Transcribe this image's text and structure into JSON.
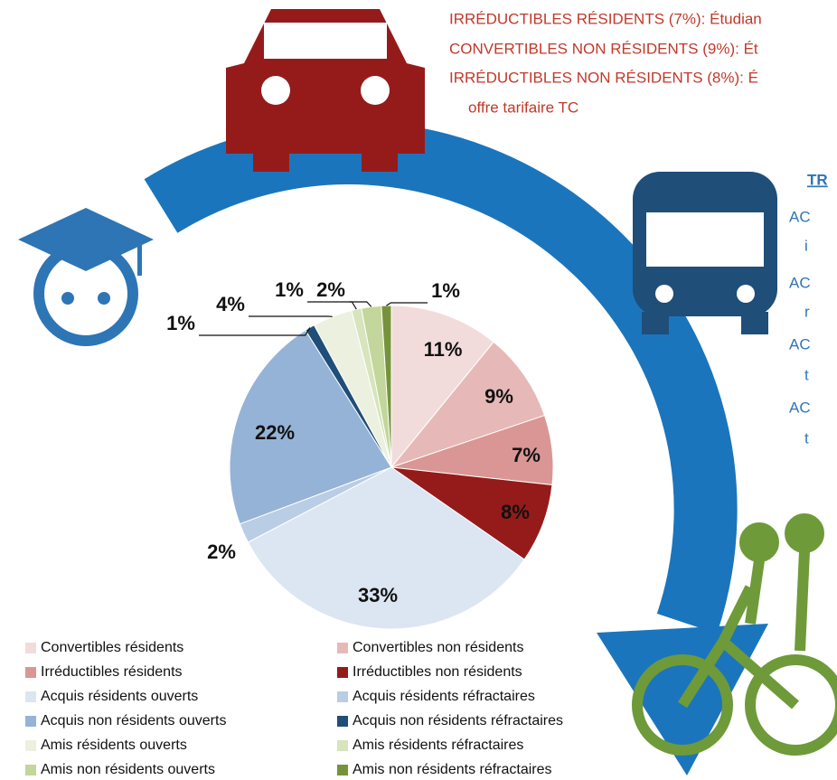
{
  "chart_data": {
    "type": "pie",
    "categories": [
      "Convertibles résidents",
      "Convertibles non résidents",
      "Irréductibles résidents",
      "Irréductibles non résidents",
      "Acquis résidents ouverts",
      "Acquis résidents réfractaires",
      "Acquis non résidents ouverts",
      "Acquis non résidents réfractaires",
      "Amis résidents ouverts",
      "Amis résidents réfractaires",
      "Amis non résidents ouverts",
      "Amis non résidents réfractaires"
    ],
    "values": [
      11,
      9,
      7,
      8,
      33,
      2,
      22,
      1,
      4,
      1,
      2,
      1
    ],
    "value_labels": [
      "11%",
      "9%",
      "7%",
      "8%",
      "33%",
      "2%",
      "22%",
      "1%",
      "4%",
      "1%",
      "2%",
      "1%"
    ],
    "colors": [
      "#f2dcdb",
      "#e6b9b8",
      "#d99694",
      "#951b1b",
      "#dce6f2",
      "#b9cde5",
      "#95b3d7",
      "#1f4e79",
      "#ebf1de",
      "#d7e4bc",
      "#c3d69b",
      "#76933c"
    ],
    "legend": "bottom-left"
  },
  "red_notes": [
    "IRRÉDUCTIBLES RÉSIDENTS (7%): Étudian",
    "CONVERTIBLES NON RÉSIDENTS (9%): Ét",
    "IRRÉDUCTIBLES NON RÉSIDENTS (8%): É",
    "offre tarifaire TC"
  ],
  "blue_heading": "TR",
  "blue_notes": [
    "AC",
    "i",
    "AC",
    "r",
    "AC",
    "t",
    "AC",
    "t"
  ]
}
